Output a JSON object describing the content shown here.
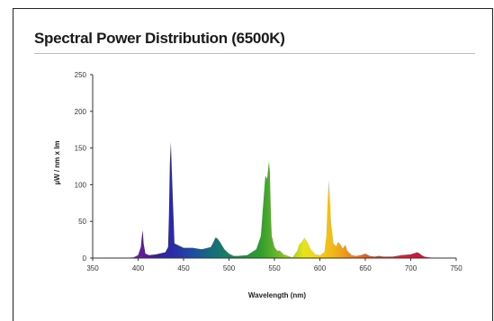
{
  "chart_data": {
    "type": "area",
    "title": "Spectral Power Distribution (6500K)",
    "xlabel": "Wavelength (nm)",
    "ylabel": "µW / nm x lm",
    "xlim": [
      350,
      750
    ],
    "ylim": [
      0,
      250
    ],
    "xticks": [
      "350",
      "400",
      "450",
      "500",
      "550",
      "600",
      "650",
      "700",
      "750"
    ],
    "yticks": [
      "0",
      "50",
      "100",
      "150",
      "200",
      "250"
    ],
    "grid": false,
    "series": [
      {
        "x": [
          380,
          395,
          400,
          403,
          404,
          405,
          406,
          408,
          412,
          420,
          430,
          433,
          434,
          435,
          436,
          437,
          440,
          450,
          460,
          470,
          480,
          483,
          485,
          487,
          490,
          495,
          500,
          505,
          510,
          520,
          530,
          535,
          538,
          540,
          542,
          543,
          544,
          545,
          546,
          547,
          550,
          553,
          556,
          560,
          570,
          575,
          577,
          580,
          583,
          585,
          587,
          590,
          595,
          600,
          605,
          607,
          608,
          609,
          610,
          611,
          612,
          613,
          615,
          618,
          620,
          623,
          625,
          628,
          630,
          635,
          640,
          645,
          650,
          655,
          660,
          665,
          670,
          680,
          690,
          700,
          705,
          707,
          710,
          712,
          715,
          720,
          730,
          740,
          750
        ],
        "y": [
          0,
          1,
          4,
          15,
          28,
          38,
          20,
          6,
          4,
          5,
          8,
          15,
          60,
          130,
          158,
          120,
          20,
          14,
          14,
          12,
          15,
          22,
          28,
          27,
          22,
          12,
          6,
          3,
          3,
          4,
          12,
          30,
          80,
          112,
          108,
          120,
          132,
          118,
          60,
          30,
          15,
          10,
          10,
          5,
          1,
          10,
          18,
          22,
          28,
          24,
          20,
          12,
          5,
          4,
          8,
          30,
          60,
          90,
          106,
          80,
          55,
          40,
          20,
          16,
          22,
          18,
          13,
          18,
          10,
          4,
          3,
          4,
          6,
          3,
          2,
          3,
          2,
          2,
          4,
          5,
          7,
          8,
          6,
          4,
          2,
          1,
          0,
          0,
          0
        ]
      }
    ]
  }
}
